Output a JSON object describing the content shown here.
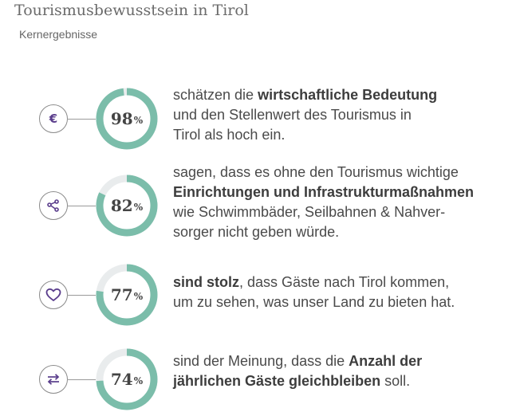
{
  "header": {
    "title": "Tourismusbewusstsein in Tirol",
    "subtitle": "Kernergebnisse"
  },
  "colors": {
    "accent": "#7bbdaa",
    "track": "#e9eced",
    "icon": "#5a3d8c"
  },
  "items": [
    {
      "icon": "euro-icon",
      "percent": 98,
      "value": "98",
      "unit": "%",
      "text": [
        {
          "t": "schätzen die "
        },
        {
          "t": "wirtschaftliche Bedeutung",
          "b": true
        },
        {
          "br": true
        },
        {
          "t": "und den Stellenwert des Tourismus in"
        },
        {
          "br": true
        },
        {
          "t": "Tirol als hoch ein."
        }
      ]
    },
    {
      "icon": "share-network-icon",
      "percent": 82,
      "value": "82",
      "unit": "%",
      "text": [
        {
          "t": "sagen, dass es ohne den Tourismus wichtige"
        },
        {
          "br": true
        },
        {
          "t": "Einrichtungen und Infrastrukturmaßnahmen",
          "b": true
        },
        {
          "br": true
        },
        {
          "t": "wie Schwimmbäder, Seilbahnen & Nahver-"
        },
        {
          "br": true
        },
        {
          "t": "sorger nicht geben würde."
        }
      ]
    },
    {
      "icon": "heart-icon",
      "percent": 77,
      "value": "77",
      "unit": "%",
      "text": [
        {
          "t": "sind stolz",
          "b": true
        },
        {
          "t": ", dass Gäste nach Tirol kommen,"
        },
        {
          "br": true
        },
        {
          "t": "um zu sehen, was unser Land zu bieten hat."
        }
      ]
    },
    {
      "icon": "exchange-arrows-icon",
      "percent": 74,
      "value": "74",
      "unit": "%",
      "text": [
        {
          "t": "sind der Meinung, dass die "
        },
        {
          "t": "Anzahl der",
          "b": true
        },
        {
          "br": true
        },
        {
          "t": "jährlichen Gäste gleichbleiben",
          "b": true
        },
        {
          "t": " soll."
        }
      ]
    }
  ]
}
